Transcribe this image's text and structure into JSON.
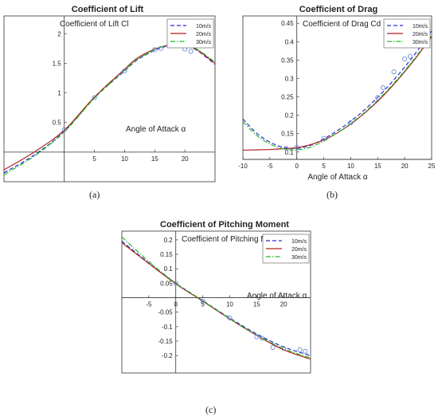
{
  "panel_labels": [
    "(a)",
    "(b)",
    "(c)"
  ],
  "chart_data": [
    {
      "type": "line",
      "title": "Coefficient of Lift",
      "inner_label": "Coefficient of Lift Cl",
      "xlabel": "Angle of Attack α",
      "ylabel": "",
      "xlim": [
        -10,
        25
      ],
      "ylim": [
        -0.5,
        2.3
      ],
      "xticks": [
        5,
        10,
        15,
        20
      ],
      "xtick_labels": [
        "5",
        "10",
        "15",
        "20"
      ],
      "yticks": [
        0.5,
        1,
        1.5,
        2
      ],
      "ytick_labels": [
        "0.5",
        "1",
        "1.5",
        "2"
      ],
      "legend_position": "top-right",
      "series": [
        {
          "name": "10m/s",
          "color": "#2b2bd6",
          "dash": "dashed",
          "x": [
            -10,
            -5,
            0,
            5,
            10,
            12,
            15,
            17,
            18,
            20,
            22,
            25
          ],
          "y": [
            -0.35,
            -0.05,
            0.35,
            0.92,
            1.37,
            1.55,
            1.72,
            1.79,
            1.8,
            1.79,
            1.72,
            1.48
          ]
        },
        {
          "name": "20m/s",
          "color": "#b22222",
          "dash": "solid",
          "x": [
            -10,
            -5,
            0,
            5,
            10,
            12,
            15,
            17,
            18,
            20,
            22,
            25
          ],
          "y": [
            -0.3,
            0.0,
            0.37,
            0.93,
            1.4,
            1.58,
            1.74,
            1.8,
            1.81,
            1.8,
            1.73,
            1.5
          ]
        },
        {
          "name": "30m/s",
          "color": "#22bb22",
          "dash": "dashdot",
          "x": [
            -10,
            -5,
            0,
            5,
            10,
            12,
            15,
            17,
            18,
            20,
            22,
            25
          ],
          "y": [
            -0.38,
            -0.07,
            0.34,
            0.91,
            1.38,
            1.56,
            1.73,
            1.8,
            1.81,
            1.8,
            1.74,
            1.52
          ]
        }
      ],
      "measured": {
        "x": [
          0,
          5,
          10,
          15,
          16,
          18,
          20,
          21
        ],
        "y": [
          0.38,
          0.92,
          1.37,
          1.73,
          1.75,
          1.8,
          1.74,
          1.7
        ]
      }
    },
    {
      "type": "line",
      "title": "Coefficient of Drag",
      "inner_label": "Coefficient of Drag Cd",
      "xlabel": "Angle of Attack α",
      "ylabel": "",
      "xlim": [
        -10,
        25
      ],
      "ylim": [
        0.08,
        0.47
      ],
      "xticks": [
        -10,
        -5,
        0,
        5,
        10,
        15,
        20,
        25
      ],
      "xtick_labels": [
        "-10",
        "-5",
        "0",
        "5",
        "10",
        "15",
        "20",
        "25"
      ],
      "yticks": [
        0.1,
        0.15,
        0.2,
        0.25,
        0.3,
        0.35,
        0.4,
        0.45
      ],
      "ytick_labels": [
        "0.1",
        "0.15",
        "0.2",
        "0.25",
        "0.3",
        "0.35",
        "0.4",
        "0.45"
      ],
      "legend_position": "top-right",
      "series": [
        {
          "name": "10m/s",
          "color": "#2b2bd6",
          "dash": "dashed",
          "x": [
            -10,
            -7.5,
            -5,
            -2.5,
            0,
            2.5,
            5,
            7.5,
            10,
            12.5,
            15,
            17.5,
            20,
            22.5,
            25
          ],
          "y": [
            0.19,
            0.152,
            0.127,
            0.113,
            0.11,
            0.118,
            0.136,
            0.158,
            0.184,
            0.214,
            0.249,
            0.288,
            0.331,
            0.378,
            0.43
          ]
        },
        {
          "name": "20m/s",
          "color": "#b22222",
          "dash": "solid",
          "x": [
            -10,
            -7.5,
            -5,
            -2.5,
            0,
            2.5,
            5,
            7.5,
            10,
            12.5,
            15,
            17.5,
            20,
            22.5,
            25
          ],
          "y": [
            0.105,
            0.106,
            0.107,
            0.109,
            0.112,
            0.12,
            0.133,
            0.152,
            0.176,
            0.205,
            0.238,
            0.276,
            0.318,
            0.364,
            0.414
          ]
        },
        {
          "name": "30m/s",
          "color": "#22bb22",
          "dash": "dashdot",
          "x": [
            -10,
            -7.5,
            -5,
            -2.5,
            0,
            2.5,
            5,
            7.5,
            10,
            12.5,
            15,
            17.5,
            20,
            22.5,
            25
          ],
          "y": [
            0.183,
            0.146,
            0.122,
            0.109,
            0.106,
            0.113,
            0.13,
            0.152,
            0.178,
            0.207,
            0.241,
            0.279,
            0.321,
            0.367,
            0.418
          ]
        }
      ],
      "measured": {
        "x": [
          -2,
          0,
          5,
          10,
          15,
          16,
          18,
          20,
          21,
          24
        ],
        "y": [
          0.11,
          0.113,
          0.137,
          0.18,
          0.248,
          0.275,
          0.318,
          0.353,
          0.36,
          0.41
        ]
      }
    },
    {
      "type": "line",
      "title": "Coefficient of Pitching Moment",
      "inner_label": "Coefficient of Pitching Moment Cm",
      "xlabel": "Angle of Attack α",
      "ylabel": "",
      "xlim": [
        -10,
        25
      ],
      "ylim": [
        -0.26,
        0.23
      ],
      "xticks": [
        -5,
        0,
        5,
        10,
        15,
        20
      ],
      "xtick_labels": [
        "-5",
        "0",
        "5",
        "10",
        "15",
        "20"
      ],
      "yticks": [
        -0.2,
        -0.15,
        -0.1,
        -0.05,
        0.05,
        0.1,
        0.15,
        0.2
      ],
      "ytick_labels": [
        "-0.2",
        "-0.15",
        "-0.1",
        "-0.05",
        "0.05",
        "0.1",
        "0.15",
        "0.2"
      ],
      "legend_position": "top-right",
      "series": [
        {
          "name": "10m/s",
          "color": "#2b2bd6",
          "dash": "dashed",
          "x": [
            -10,
            -5,
            0,
            5,
            10,
            15,
            20,
            25
          ],
          "y": [
            0.195,
            0.12,
            0.05,
            -0.01,
            -0.07,
            -0.125,
            -0.17,
            -0.2
          ]
        },
        {
          "name": "20m/s",
          "color": "#b22222",
          "dash": "solid",
          "x": [
            -10,
            -5,
            0,
            5,
            10,
            15,
            20,
            25
          ],
          "y": [
            0.19,
            0.118,
            0.048,
            -0.012,
            -0.073,
            -0.13,
            -0.18,
            -0.212
          ]
        },
        {
          "name": "30m/s",
          "color": "#22bb22",
          "dash": "dashdot",
          "x": [
            -10,
            -5,
            0,
            5,
            10,
            15,
            20,
            25
          ],
          "y": [
            0.21,
            0.125,
            0.05,
            -0.01,
            -0.072,
            -0.128,
            -0.176,
            -0.208
          ]
        }
      ],
      "measured": {
        "x": [
          0,
          5,
          10,
          15,
          16,
          18,
          20,
          23,
          24
        ],
        "y": [
          0.05,
          -0.012,
          -0.07,
          -0.135,
          -0.14,
          -0.172,
          -0.175,
          -0.18,
          -0.185
        ]
      }
    }
  ]
}
